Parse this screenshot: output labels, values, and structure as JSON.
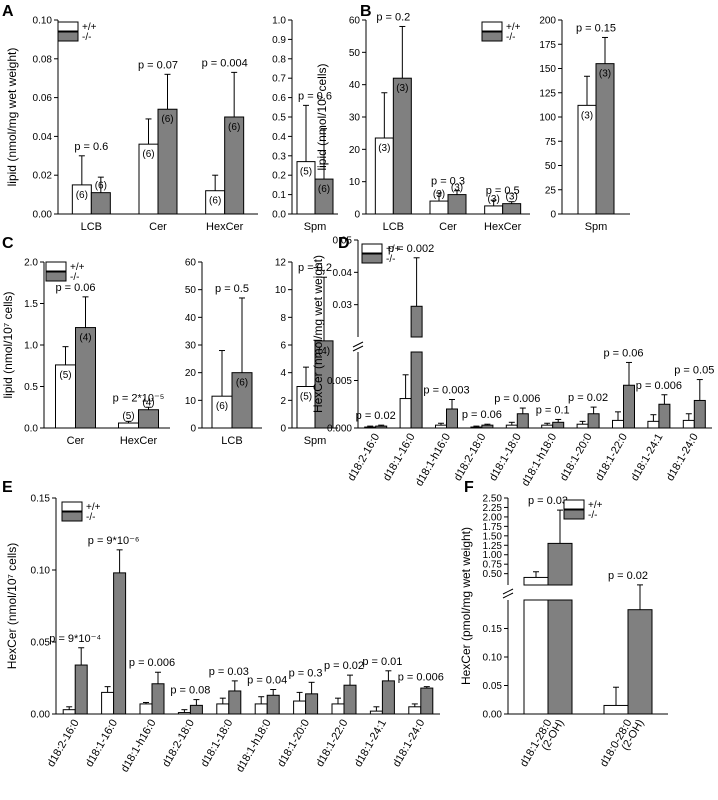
{
  "figure": {
    "legend": {
      "wt": "+/+",
      "ko": "-/-"
    },
    "colors": {
      "wt": "#ffffff",
      "ko": "#808080",
      "stroke": "#000000"
    }
  },
  "chart_data": [
    {
      "id": "A1",
      "panel": "A",
      "type": "bar",
      "ylabel": "lipid (nmol/mg wet weight)",
      "ylim": [
        0,
        0.1
      ],
      "yticks": [
        "0.00",
        "0.02",
        "0.04",
        "0.06",
        "0.08",
        "0.10"
      ],
      "legend": true,
      "groups": [
        {
          "category": "LCB",
          "p": "p = 0.6",
          "wt": 0.015,
          "wt_err": 0.015,
          "wt_n": "(6)",
          "ko": 0.011,
          "ko_err": 0.008,
          "ko_n": "(6)"
        },
        {
          "category": "Cer",
          "p": "p = 0.07",
          "wt": 0.036,
          "wt_err": 0.013,
          "wt_n": "(6)",
          "ko": 0.054,
          "ko_err": 0.018,
          "ko_n": "(6)"
        },
        {
          "category": "HexCer",
          "p": "p = 0.004",
          "wt": 0.012,
          "wt_err": 0.008,
          "wt_n": "(6)",
          "ko": 0.05,
          "ko_err": 0.023,
          "ko_n": "(6)"
        }
      ]
    },
    {
      "id": "A2",
      "type": "bar",
      "ylim": [
        0,
        1.0
      ],
      "yticks": [
        "0.0",
        "0.1",
        "0.2",
        "0.3",
        "0.4",
        "0.5",
        "0.6",
        "0.7",
        "0.8",
        "0.9",
        "1.0"
      ],
      "groups": [
        {
          "category": "Spm",
          "p": "p = 0.6",
          "wt": 0.27,
          "wt_err": 0.29,
          "wt_n": "(5)",
          "ko": 0.18,
          "ko_err": 0.26,
          "ko_n": "(6)"
        }
      ]
    },
    {
      "id": "B1",
      "panel": "B",
      "type": "bar",
      "ylabel": "lipid (nmol/10⁷ cells)",
      "ylim": [
        0,
        60
      ],
      "yticks": [
        "0",
        "10",
        "20",
        "30",
        "40",
        "50",
        "60"
      ],
      "legend": true,
      "groups": [
        {
          "category": "LCB",
          "p": "p = 0.2",
          "wt": 23.5,
          "wt_err": 14,
          "wt_n": "(3)",
          "ko": 42,
          "ko_err": 16,
          "ko_n": "(3)"
        },
        {
          "category": "Cer",
          "p": "p = 0.3",
          "wt": 4,
          "wt_err": 2.5,
          "wt_n": "(3)",
          "ko": 6,
          "ko_err": 1.2,
          "ko_n": "(3)"
        },
        {
          "category": "HexCer",
          "p": "p = 0.5",
          "wt": 2.5,
          "wt_err": 1.8,
          "wt_n": "(3)",
          "ko": 3.2,
          "ko_err": 0.6,
          "ko_n": "(3)"
        }
      ]
    },
    {
      "id": "B2",
      "type": "bar",
      "ylim": [
        0,
        200
      ],
      "yticks": [
        "0",
        "25",
        "50",
        "75",
        "100",
        "125",
        "150",
        "175",
        "200"
      ],
      "groups": [
        {
          "category": "Spm",
          "p": "p = 0.15",
          "wt": 112,
          "wt_err": 30,
          "wt_n": "(3)",
          "ko": 155,
          "ko_err": 27,
          "ko_n": "(3)"
        }
      ]
    },
    {
      "id": "C1",
      "panel": "C",
      "type": "bar",
      "ylabel": "lipid (nmol/10⁷ cells)",
      "ylim": [
        0,
        2.0
      ],
      "yticks": [
        "0.0",
        "0.5",
        "1.0",
        "1.5",
        "2.0"
      ],
      "legend": true,
      "groups": [
        {
          "category": "Cer",
          "p": "p = 0.06",
          "wt": 0.76,
          "wt_err": 0.22,
          "wt_n": "(5)",
          "ko": 1.21,
          "ko_err": 0.37,
          "ko_n": "(4)"
        },
        {
          "category": "HexCer",
          "p": "p = 2*10⁻⁵",
          "wt": 0.06,
          "wt_err": 0.02,
          "wt_n": "(5)",
          "ko": 0.22,
          "ko_err": 0.03,
          "ko_n": "(4)"
        }
      ]
    },
    {
      "id": "C2",
      "type": "bar",
      "ylim": [
        0,
        60
      ],
      "yticks": [
        "0",
        "10",
        "20",
        "30",
        "40",
        "50",
        "60"
      ],
      "groups": [
        {
          "category": "LCB",
          "p": "p = 0.5",
          "wt": 11.5,
          "wt_err": 16.5,
          "wt_n": "(6)",
          "ko": 20,
          "ko_err": 27,
          "ko_n": "(6)"
        }
      ]
    },
    {
      "id": "C3",
      "type": "bar",
      "ylim": [
        0,
        12
      ],
      "yticks": [
        "0",
        "2",
        "4",
        "6",
        "8",
        "10",
        "12"
      ],
      "groups": [
        {
          "category": "Spm",
          "p": "p = 0.2",
          "wt": 3.0,
          "wt_err": 1.4,
          "wt_n": "(5)",
          "ko": 6.3,
          "ko_err": 4.6,
          "ko_n": "(4)"
        }
      ]
    },
    {
      "id": "D",
      "panel": "D",
      "type": "bar",
      "ylabel": "HexCer (nmol/mg wet weight)",
      "broken_axis": true,
      "lower_ylim": [
        0,
        0.008
      ],
      "upper_ylim": [
        0.02,
        0.05
      ],
      "yticks_lower": [
        "0.000",
        "0.005"
      ],
      "yticks_upper": [
        "0.03",
        "0.04",
        "0.05"
      ],
      "legend": true,
      "rotated_labels": true,
      "groups": [
        {
          "category": "d18:2-16:0",
          "p": "p = 0.02",
          "wt": 0.0001,
          "wt_err": 0.0001,
          "ko": 0.0002,
          "ko_err": 0.0001
        },
        {
          "category": "d18:1-16:0",
          "p": "p = 0.002",
          "wt": 0.0031,
          "wt_err": 0.0025,
          "ko": 0.0295,
          "ko_err": 0.015
        },
        {
          "category": "d18:1-h16:0",
          "p": "p = 0.003",
          "wt": 0.0003,
          "wt_err": 0.0002,
          "ko": 0.002,
          "ko_err": 0.001
        },
        {
          "category": "d18:2-18:0",
          "p": "p = 0.06",
          "wt": 0.0001,
          "wt_err": 0.0001,
          "ko": 0.0003,
          "ko_err": 0.0001
        },
        {
          "category": "d18:1-18:0",
          "p": "p = 0.006",
          "wt": 0.0003,
          "wt_err": 0.0003,
          "ko": 0.0015,
          "ko_err": 0.0006
        },
        {
          "category": "d18:1-h18:0",
          "p": "p = 0.1",
          "wt": 0.0003,
          "wt_err": 0.0002,
          "ko": 0.0006,
          "ko_err": 0.0003
        },
        {
          "category": "d18:1-20:0",
          "p": "p = 0.02",
          "wt": 0.0004,
          "wt_err": 0.0003,
          "ko": 0.0015,
          "ko_err": 0.0007
        },
        {
          "category": "d18:1-22:0",
          "p": "p = 0.06",
          "wt": 0.0008,
          "wt_err": 0.0009,
          "ko": 0.0045,
          "ko_err": 0.0024
        },
        {
          "category": "d18:1-24:1",
          "p": "p = 0.006",
          "wt": 0.0007,
          "wt_err": 0.0007,
          "ko": 0.0025,
          "ko_err": 0.001
        },
        {
          "category": "d18:1-24:0",
          "p": "p = 0.05",
          "wt": 0.0008,
          "wt_err": 0.0007,
          "ko": 0.0029,
          "ko_err": 0.0022
        }
      ]
    },
    {
      "id": "E",
      "panel": "E",
      "type": "bar",
      "ylabel": "HexCer (nmol/10⁷ cells)",
      "ylim": [
        0,
        0.15
      ],
      "yticks": [
        "0.00",
        "0.05",
        "0.10",
        "0.15"
      ],
      "legend": true,
      "rotated_labels": true,
      "groups": [
        {
          "category": "d18:2-16:0",
          "p": "p = 9*10⁻⁴",
          "wt": 0.003,
          "wt_err": 0.002,
          "ko": 0.034,
          "ko_err": 0.012
        },
        {
          "category": "d18:1-16:0",
          "p": "p = 9*10⁻⁶",
          "wt": 0.015,
          "wt_err": 0.004,
          "ko": 0.098,
          "ko_err": 0.016
        },
        {
          "category": "d18:1-h16:0",
          "p": "p = 0.006",
          "wt": 0.007,
          "wt_err": 0.001,
          "ko": 0.021,
          "ko_err": 0.008
        },
        {
          "category": "d18:2-18:0",
          "p": "p = 0.08",
          "wt": 0.001,
          "wt_err": 0.002,
          "ko": 0.006,
          "ko_err": 0.004
        },
        {
          "category": "d18:1-18:0",
          "p": "p = 0.03",
          "wt": 0.007,
          "wt_err": 0.004,
          "ko": 0.016,
          "ko_err": 0.007
        },
        {
          "category": "d18:1-h18:0",
          "p": "p = 0.04",
          "wt": 0.007,
          "wt_err": 0.005,
          "ko": 0.013,
          "ko_err": 0.004
        },
        {
          "category": "d18:1-20:0",
          "p": "p = 0.3",
          "wt": 0.009,
          "wt_err": 0.006,
          "ko": 0.014,
          "ko_err": 0.008
        },
        {
          "category": "d18:1-22:0",
          "p": "p = 0.02",
          "wt": 0.007,
          "wt_err": 0.004,
          "ko": 0.02,
          "ko_err": 0.007
        },
        {
          "category": "d18:1-24:1",
          "p": "p = 0.01",
          "wt": 0.002,
          "wt_err": 0.003,
          "ko": 0.023,
          "ko_err": 0.007
        },
        {
          "category": "d18:1-24:0",
          "p": "p = 0.006",
          "wt": 0.005,
          "wt_err": 0.002,
          "ko": 0.018,
          "ko_err": 0.001
        }
      ]
    },
    {
      "id": "F",
      "panel": "F",
      "type": "bar",
      "ylabel": "HexCer (pmol/mg wet weight)",
      "broken_axis": true,
      "lower_ylim": [
        0,
        0.2
      ],
      "upper_ylim": [
        0.2,
        2.5
      ],
      "yticks_lower": [
        "0.00",
        "0.05",
        "0.10",
        "0.15"
      ],
      "yticks_upper": [
        "0.50",
        "0.75",
        "1.00",
        "1.25",
        "1.50",
        "1.75",
        "2.00",
        "2.25",
        "2.50"
      ],
      "legend": true,
      "rotated_labels": true,
      "groups": [
        {
          "category": "d18:1-28:0 (2-OH)",
          "cat_lines": [
            "d18:1-28:0",
            "(2-OH)"
          ],
          "p": "p = 0.03",
          "wt": 0.4,
          "wt_err": 0.15,
          "ko": 1.3,
          "ko_err": 0.88
        },
        {
          "category": "d18:0-28:0 (2-OH)",
          "cat_lines": [
            "d18:0-28:0",
            "(2-OH)"
          ],
          "p": "p = 0.02",
          "wt": 0.015,
          "wt_err": 0.032,
          "ko": 0.183,
          "ko_err": 0.02
        }
      ]
    }
  ]
}
